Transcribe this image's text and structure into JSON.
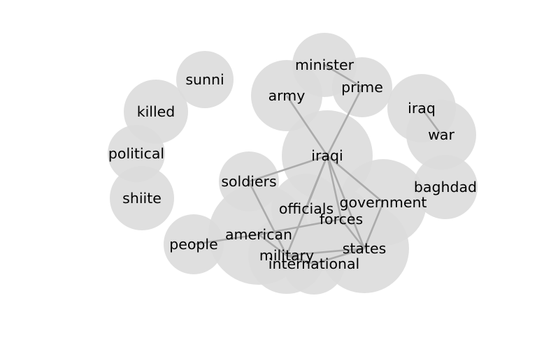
{
  "diagram": {
    "type": "word-cooccurrence-bubble-graph",
    "bubble_color": "#dcdcdc",
    "edge_color": "#ababab",
    "text_color": "#000000",
    "nodes": [
      {
        "id": "minister",
        "label": "minister"
      },
      {
        "id": "prime",
        "label": "prime"
      },
      {
        "id": "army",
        "label": "army"
      },
      {
        "id": "sunni",
        "label": "sunni"
      },
      {
        "id": "killed",
        "label": "killed"
      },
      {
        "id": "political",
        "label": "political"
      },
      {
        "id": "shiite",
        "label": "shiite"
      },
      {
        "id": "iraq",
        "label": "iraq"
      },
      {
        "id": "war",
        "label": "war"
      },
      {
        "id": "iraqi",
        "label": "iraqi"
      },
      {
        "id": "baghdad",
        "label": "baghdad"
      },
      {
        "id": "soldiers",
        "label": "soldiers"
      },
      {
        "id": "government",
        "label": "government"
      },
      {
        "id": "officials",
        "label": "officials"
      },
      {
        "id": "forces",
        "label": "forces"
      },
      {
        "id": "american",
        "label": "american"
      },
      {
        "id": "people",
        "label": "people"
      },
      {
        "id": "states",
        "label": "states"
      },
      {
        "id": "military",
        "label": "military"
      },
      {
        "id": "international",
        "label": "international"
      }
    ],
    "edges": [
      [
        "minister",
        "prime"
      ],
      [
        "iraq",
        "war"
      ],
      [
        "army",
        "iraqi"
      ],
      [
        "prime",
        "iraqi"
      ],
      [
        "iraqi",
        "soldiers"
      ],
      [
        "iraqi",
        "government"
      ],
      [
        "iraqi",
        "officials"
      ],
      [
        "iraqi",
        "forces"
      ],
      [
        "iraqi",
        "states"
      ],
      [
        "iraqi",
        "military"
      ],
      [
        "soldiers",
        "military"
      ],
      [
        "government",
        "states"
      ],
      [
        "people",
        "american"
      ],
      [
        "american",
        "forces"
      ],
      [
        "american",
        "military"
      ],
      [
        "forces",
        "states"
      ],
      [
        "military",
        "states"
      ],
      [
        "military",
        "international"
      ],
      [
        "international",
        "states"
      ]
    ]
  }
}
